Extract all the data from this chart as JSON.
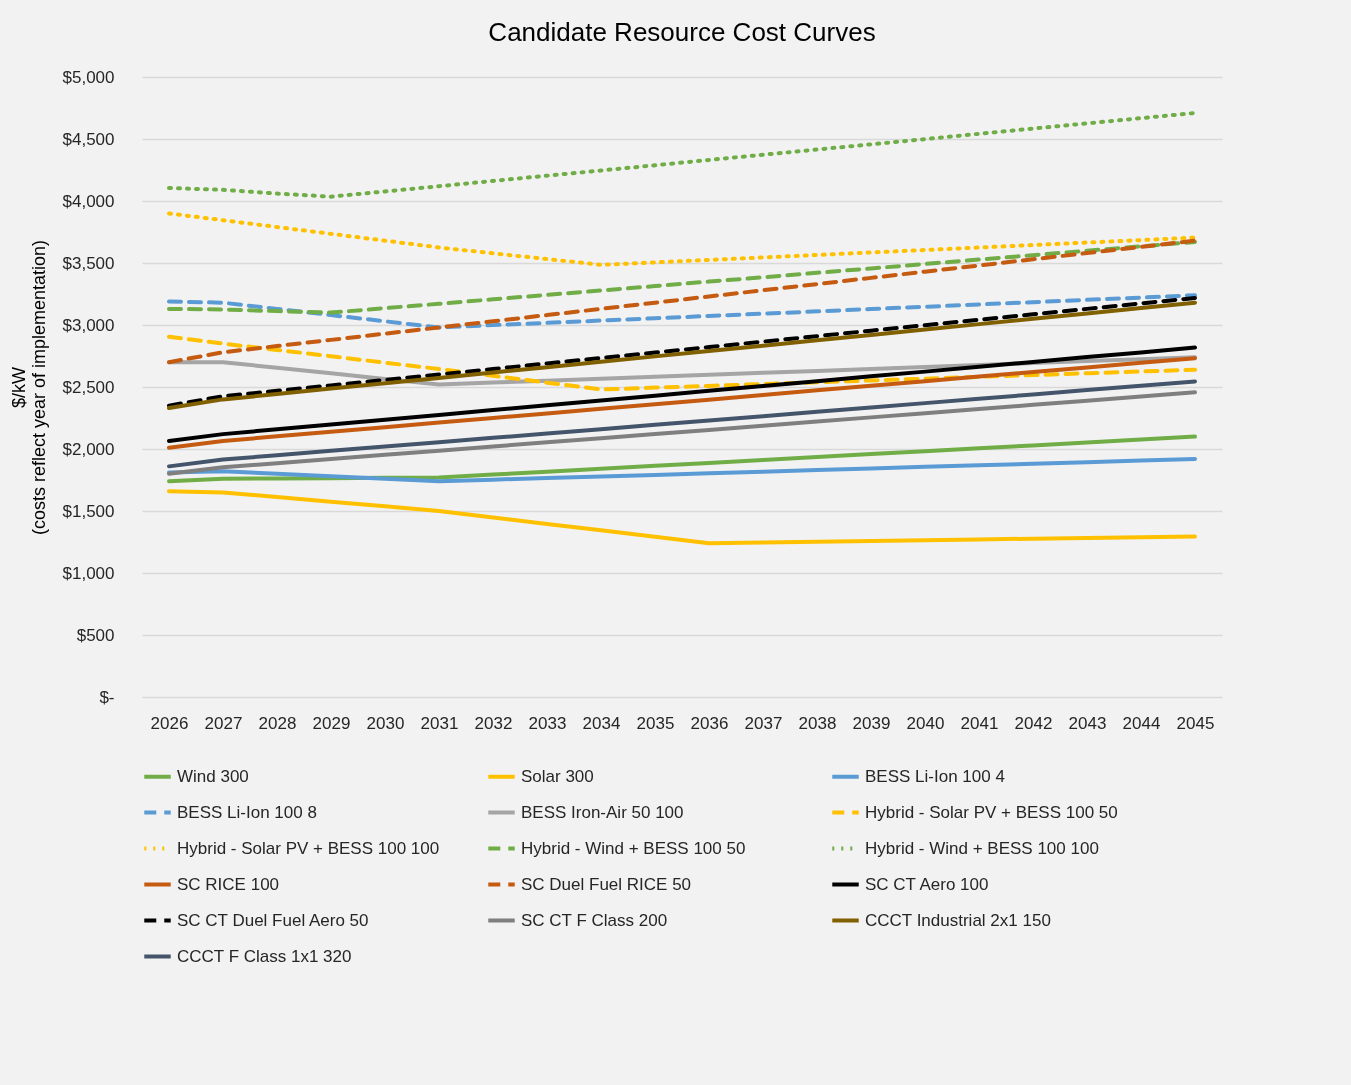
{
  "chart_data": {
    "type": "line",
    "title": "Candidate Resource Cost Curves",
    "ylabel": "$/kW\n(costs reflect year of implementation)",
    "categories": [
      "2026",
      "2027",
      "2028",
      "2029",
      "2030",
      "2031",
      "2032",
      "2033",
      "2034",
      "2035",
      "2036",
      "2037",
      "2038",
      "2039",
      "2040",
      "2041",
      "2042",
      "2043",
      "2044",
      "2045"
    ],
    "ylim": [
      0,
      5000
    ],
    "yticks": [
      {
        "value": 0,
        "label": "$-"
      },
      {
        "value": 500,
        "label": "$500"
      },
      {
        "value": 1000,
        "label": "$1,000"
      },
      {
        "value": 1500,
        "label": "$1,500"
      },
      {
        "value": 2000,
        "label": "$2,000"
      },
      {
        "value": 2500,
        "label": "$2,500"
      },
      {
        "value": 3000,
        "label": "$3,000"
      },
      {
        "value": 3500,
        "label": "$3,500"
      },
      {
        "value": 4000,
        "label": "$4,000"
      },
      {
        "value": 4500,
        "label": "$4,500"
      },
      {
        "value": 5000,
        "label": "$5,000"
      }
    ],
    "grid": "y",
    "legend": "bottom",
    "marker": "none",
    "series": [
      {
        "name": "Wind 300",
        "color": "#70ad47",
        "line_style": "solid",
        "values": [
          1740,
          1760,
          1763,
          1765,
          1768,
          1770,
          1794,
          1817,
          1841,
          1864,
          1888,
          1911,
          1935,
          1959,
          1982,
          2006,
          2029,
          2053,
          2076,
          2100
        ]
      },
      {
        "name": "Solar 300",
        "color": "#ffc000",
        "line_style": "solid",
        "values": [
          1660,
          1650,
          1613,
          1575,
          1538,
          1500,
          1448,
          1396,
          1344,
          1292,
          1240,
          1246,
          1252,
          1258,
          1264,
          1271,
          1277,
          1283,
          1289,
          1295
        ]
      },
      {
        "name": "BESS Li-Ion 100 4",
        "color": "#5b9bd5",
        "line_style": "solid",
        "values": [
          1810,
          1820,
          1800,
          1780,
          1760,
          1740,
          1753,
          1766,
          1779,
          1791,
          1804,
          1817,
          1830,
          1843,
          1856,
          1869,
          1881,
          1894,
          1907,
          1920
        ]
      },
      {
        "name": "BESS Li-Ion 100 8",
        "color": "#5b9bd5",
        "line_style": "dashed",
        "values": [
          3190,
          3180,
          3130,
          3080,
          3030,
          2980,
          2999,
          3017,
          3036,
          3054,
          3073,
          3091,
          3110,
          3129,
          3147,
          3166,
          3184,
          3203,
          3221,
          3240
        ]
      },
      {
        "name": "BESS Iron-Air 50 100",
        "color": "#a5a5a5",
        "line_style": "solid",
        "values": [
          2700,
          2700,
          2655,
          2610,
          2565,
          2520,
          2536,
          2551,
          2567,
          2583,
          2599,
          2614,
          2630,
          2646,
          2661,
          2677,
          2693,
          2709,
          2724,
          2740
        ]
      },
      {
        "name": "Hybrid - Solar PV + BESS 100 50",
        "color": "#ffc000",
        "line_style": "dashed",
        "values": [
          2905,
          2850,
          2799,
          2748,
          2696,
          2645,
          2590,
          2535,
          2480,
          2495,
          2509,
          2524,
          2538,
          2553,
          2567,
          2582,
          2596,
          2611,
          2625,
          2640
        ]
      },
      {
        "name": "Hybrid - Solar PV + BESS 100 100",
        "color": "#ffc000",
        "line_style": "dotted",
        "values": [
          3900,
          3845,
          3790,
          3735,
          3680,
          3625,
          3578,
          3532,
          3485,
          3505,
          3525,
          3545,
          3565,
          3585,
          3605,
          3625,
          3645,
          3665,
          3685,
          3705
        ]
      },
      {
        "name": "Hybrid - Wind + BESS 100 50",
        "color": "#70ad47",
        "line_style": "dashed",
        "values": [
          3130,
          3125,
          3112,
          3100,
          3136,
          3171,
          3207,
          3243,
          3278,
          3314,
          3350,
          3385,
          3421,
          3456,
          3492,
          3528,
          3563,
          3599,
          3634,
          3670
        ]
      },
      {
        "name": "Hybrid - Wind + BESS 100 100",
        "color": "#70ad47",
        "line_style": "dotted",
        "values": [
          4105,
          4090,
          4060,
          4035,
          4077,
          4119,
          4162,
          4204,
          4246,
          4288,
          4331,
          4373,
          4415,
          4457,
          4499,
          4542,
          4584,
          4626,
          4668,
          4710
        ]
      },
      {
        "name": "SC RICE 100",
        "color": "#c55a11",
        "line_style": "solid",
        "values": [
          2010,
          2065,
          2102,
          2139,
          2176,
          2213,
          2250,
          2287,
          2324,
          2361,
          2398,
          2436,
          2473,
          2510,
          2547,
          2584,
          2621,
          2658,
          2695,
          2732
        ]
      },
      {
        "name": "SC Duel Fuel RICE 50",
        "color": "#c55a11",
        "line_style": "dashed",
        "values": [
          2700,
          2780,
          2830,
          2880,
          2930,
          2980,
          3030,
          3080,
          3130,
          3180,
          3230,
          3280,
          3330,
          3380,
          3430,
          3480,
          3530,
          3580,
          3630,
          3680
        ]
      },
      {
        "name": "SC CT Aero 100",
        "color": "#000000",
        "line_style": "solid",
        "values": [
          2065,
          2120,
          2159,
          2198,
          2236,
          2275,
          2314,
          2353,
          2392,
          2430,
          2469,
          2508,
          2547,
          2586,
          2624,
          2663,
          2702,
          2741,
          2779,
          2818
        ]
      },
      {
        "name": "SC CT Duel Fuel Aero 50",
        "color": "#000000",
        "line_style": "dashed",
        "values": [
          2350,
          2425,
          2469,
          2513,
          2557,
          2601,
          2645,
          2690,
          2734,
          2778,
          2822,
          2866,
          2910,
          2954,
          2998,
          3042,
          3086,
          3130,
          3174,
          3218
        ]
      },
      {
        "name": "SC CT F Class 200",
        "color": "#7f7f7f",
        "line_style": "solid",
        "values": [
          1800,
          1852,
          1886,
          1919,
          1953,
          1986,
          2020,
          2054,
          2087,
          2121,
          2154,
          2188,
          2222,
          2255,
          2289,
          2323,
          2356,
          2390,
          2423,
          2457
        ]
      },
      {
        "name": "CCCT Industrial 2x1 150",
        "color": "#806000",
        "line_style": "solid",
        "values": [
          2330,
          2400,
          2443,
          2487,
          2530,
          2573,
          2617,
          2660,
          2703,
          2747,
          2790,
          2833,
          2877,
          2920,
          2963,
          3007,
          3050,
          3093,
          3137,
          3180
        ]
      },
      {
        "name": "CCCT F Class 1x1 320",
        "color": "#44546a",
        "line_style": "solid",
        "values": [
          1860,
          1915,
          1950,
          1985,
          2020,
          2055,
          2090,
          2125,
          2160,
          2195,
          2230,
          2265,
          2300,
          2335,
          2370,
          2405,
          2440,
          2475,
          2510,
          2545
        ]
      }
    ]
  }
}
